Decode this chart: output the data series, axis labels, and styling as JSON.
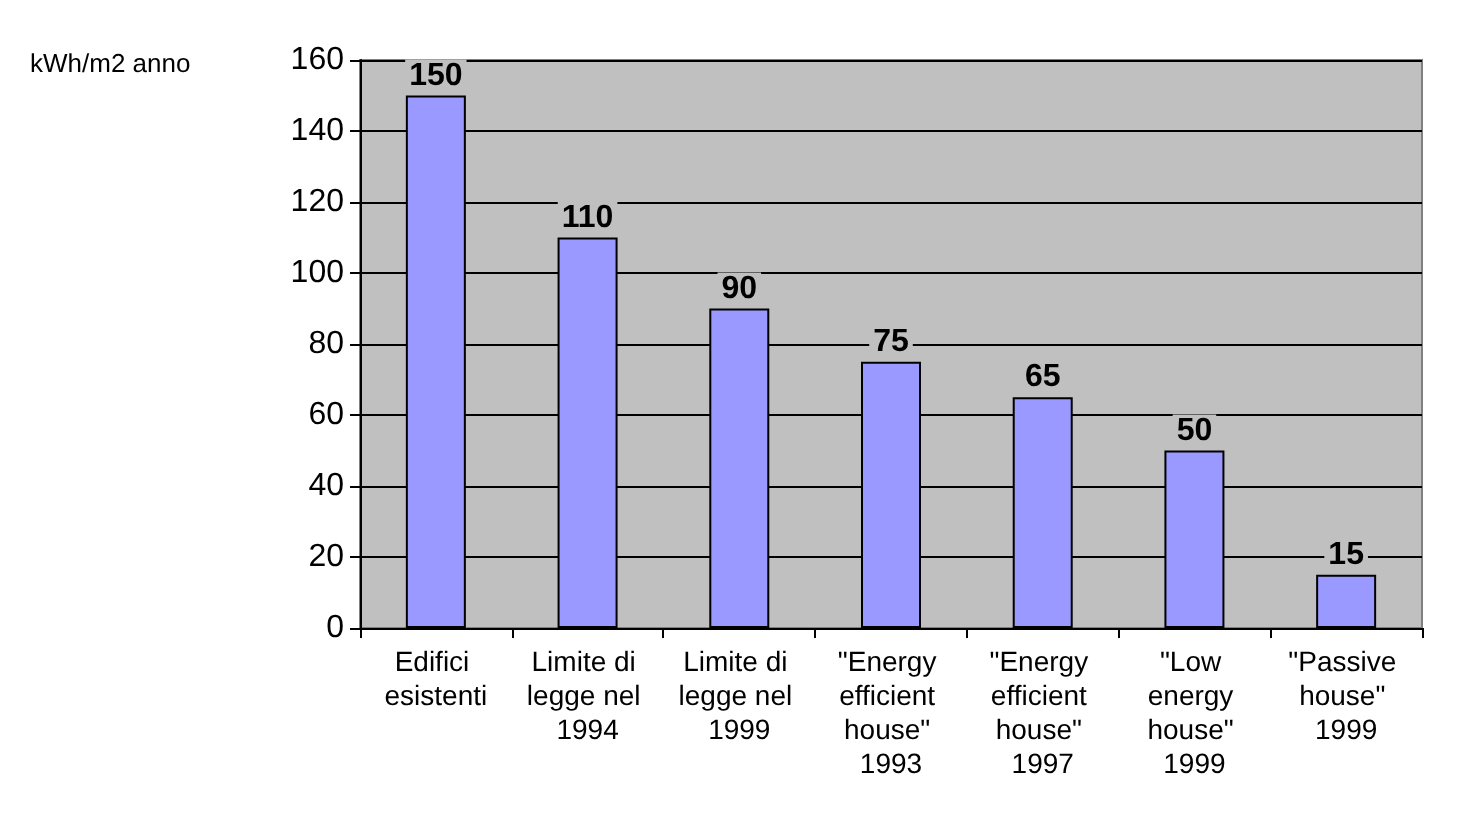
{
  "chart_data": {
    "type": "bar",
    "ylabel": "kWh/m2 anno",
    "categories": [
      "Edifici esistenti",
      "Limite di legge nel 1994",
      "Limite di legge nel 1999",
      "\"Energy efficient house\" 1993",
      "\"Energy efficient house\" 1997",
      "\"Low energy house\" 1999",
      "\"Passive house\" 1999"
    ],
    "values": [
      150,
      110,
      90,
      75,
      65,
      50,
      15
    ],
    "color": "#9999ff",
    "ylim": [
      0,
      160
    ],
    "yticks": [
      0,
      20,
      40,
      60,
      80,
      100,
      120,
      140,
      160
    ],
    "grid": "y",
    "data_labels": true
  }
}
